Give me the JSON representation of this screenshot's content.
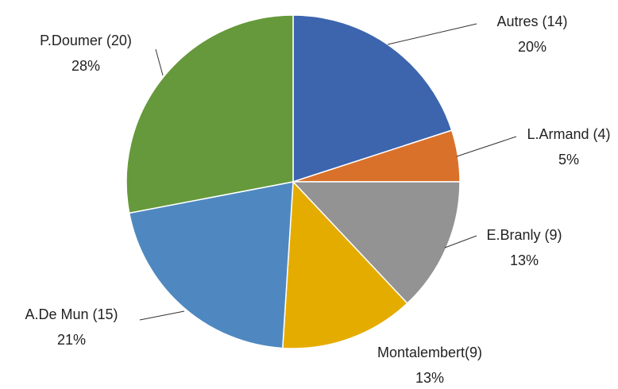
{
  "chart_data": {
    "type": "pie",
    "categories": [
      "Autres (14)",
      "L.Armand (4)",
      "E.Branly (9)",
      "Montalembert(9)",
      "A.De Mun (15)",
      "P.Doumer (20)"
    ],
    "values": [
      20,
      5,
      13,
      13,
      21,
      28
    ],
    "value_labels": [
      "20%",
      "5%",
      "13%",
      "13%",
      "21%",
      "28%"
    ],
    "colors": [
      "#3c65ae",
      "#d9712b",
      "#939393",
      "#e5ac00",
      "#4f88c0",
      "#65993b"
    ]
  }
}
